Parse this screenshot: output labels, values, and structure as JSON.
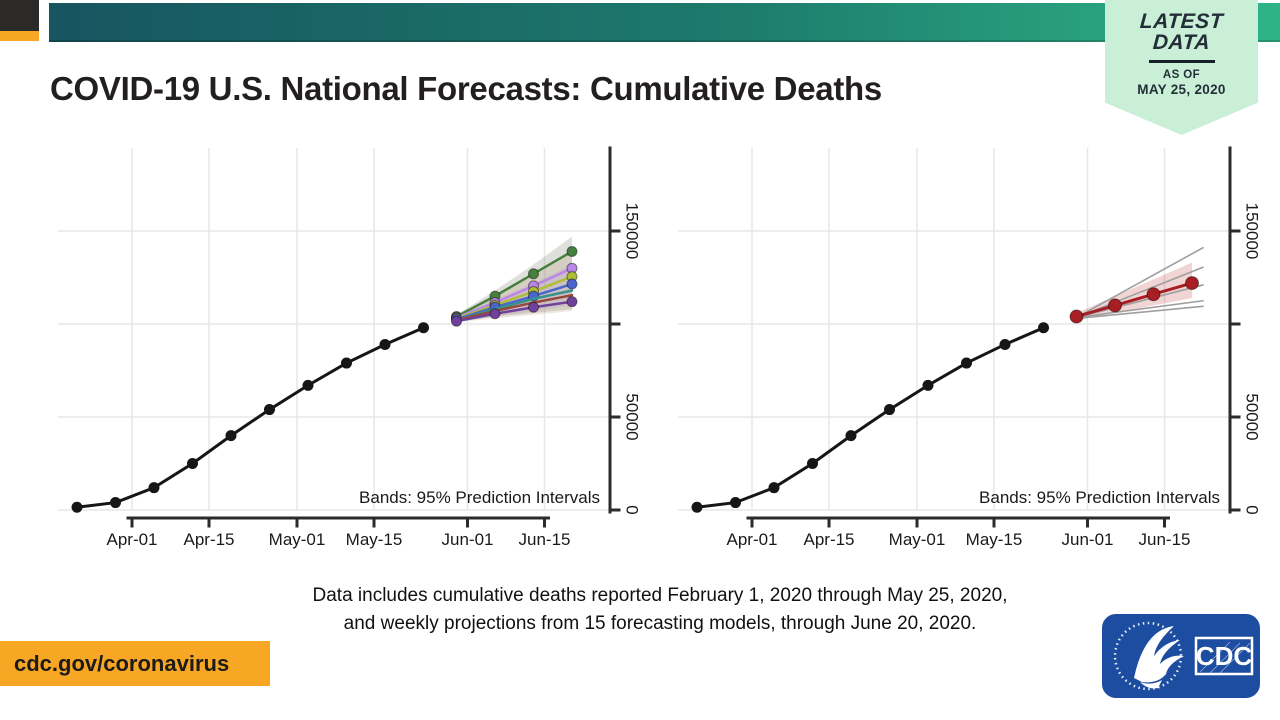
{
  "header": {
    "title": "COVID-19 U.S. National Forecasts: Cumulative Deaths",
    "badge": {
      "line1": "LATEST",
      "line2": "DATA",
      "as_of": "AS OF",
      "date": "MAY 25, 2020"
    },
    "colors": {
      "bar_gradient_left": "#175560",
      "bar_gradient_right": "#2eb487",
      "badge_bg": "#c9efd7",
      "corner_black": "#2b2a28",
      "corner_orange": "#f7a723"
    }
  },
  "caption": {
    "line1": "Data includes cumulative deaths reported February 1, 2020 through May 25, 2020,",
    "line2": "and weekly projections from 15 forecasting models, through June 20, 2020."
  },
  "footer": {
    "url": "cdc.gov/coronavirus",
    "logo_label": "CDC",
    "logo_color": "#1c4da1"
  },
  "chart_data": [
    {
      "type": "line",
      "panel": "individual-model-forecasts",
      "annotation": "Bands: 95% Prediction Intervals",
      "ylim": [
        0,
        195000
      ],
      "grid": true,
      "x_ticks": [
        {
          "label": "Apr-01",
          "day": 0
        },
        {
          "label": "Apr-15",
          "day": 14
        },
        {
          "label": "May-01",
          "day": 30
        },
        {
          "label": "May-15",
          "day": 44
        },
        {
          "label": "Jun-01",
          "day": 61
        },
        {
          "label": "Jun-15",
          "day": 75
        }
      ],
      "y_ticks": [
        {
          "label": "0",
          "value": 0
        },
        {
          "label": "50000",
          "value": 50000
        },
        {
          "label": "",
          "value": 100000
        },
        {
          "label": "150000",
          "value": 150000
        }
      ],
      "bands": [
        {
          "color": "rgba(140,140,125,0.28)",
          "days": [
            59,
            66,
            73,
            80
          ],
          "lower": [
            101000,
            104000,
            106000,
            108000
          ],
          "upper": [
            105000,
            118000,
            132000,
            147000
          ]
        },
        {
          "color": "rgba(180,160,120,0.25)",
          "days": [
            59,
            66,
            73,
            80
          ],
          "lower": [
            101000,
            103000,
            105000,
            107000
          ],
          "upper": [
            105000,
            115000,
            126000,
            138000
          ]
        },
        {
          "color": "rgba(175,140,205,0.22)",
          "days": [
            59,
            66,
            73,
            80
          ],
          "lower": [
            101000,
            104000,
            107000,
            110000
          ],
          "upper": [
            104000,
            113000,
            122000,
            132000
          ]
        }
      ],
      "series": [
        {
          "name": "reported-cumulative-deaths",
          "color": "#161616",
          "width": 3,
          "dots": true,
          "dot_r": 5.5,
          "days": [
            -10,
            -3,
            4,
            11,
            18,
            25,
            32,
            39,
            46,
            53
          ],
          "values": [
            1500,
            4000,
            12000,
            25000,
            40000,
            54000,
            67000,
            79000,
            89000,
            98000
          ]
        },
        {
          "name": "model-1",
          "color": "#477f3f",
          "width": 2.5,
          "dots": true,
          "dot_r": 5,
          "ring": true,
          "days": [
            59,
            66,
            73,
            80
          ],
          "values": [
            104000,
            115000,
            127000,
            139000
          ]
        },
        {
          "name": "model-2",
          "color": "#bb85e8",
          "width": 2.5,
          "dots": true,
          "dot_r": 5,
          "ring": true,
          "days": [
            59,
            66,
            73,
            80
          ],
          "values": [
            103500,
            111500,
            120500,
            130000
          ]
        },
        {
          "name": "model-3",
          "color": "#afbc38",
          "width": 2.5,
          "dots": true,
          "dot_r": 5,
          "ring": true,
          "days": [
            59,
            66,
            73,
            80
          ],
          "values": [
            103000,
            110000,
            117500,
            125500
          ]
        },
        {
          "name": "model-4",
          "color": "#4a66cc",
          "width": 2.5,
          "dots": true,
          "dot_r": 5,
          "ring": true,
          "days": [
            59,
            66,
            73,
            80
          ],
          "values": [
            102500,
            109000,
            115000,
            121500
          ]
        },
        {
          "name": "model-5",
          "color": "#37918d",
          "width": 2.5,
          "dots": false,
          "dot_r": 4,
          "days": [
            59,
            66,
            73,
            80
          ],
          "values": [
            102000,
            108000,
            113500,
            118000
          ]
        },
        {
          "name": "model-6",
          "color": "#95483b",
          "width": 2.5,
          "dots": false,
          "dot_r": 4,
          "days": [
            59,
            66,
            73,
            80
          ],
          "values": [
            102000,
            107000,
            111500,
            115500
          ]
        },
        {
          "name": "model-7",
          "color": "#70419b",
          "width": 2.5,
          "dots": true,
          "dot_r": 5,
          "ring": true,
          "days": [
            59,
            66,
            73,
            80
          ],
          "values": [
            101500,
            105500,
            109000,
            112000
          ]
        }
      ]
    },
    {
      "type": "line",
      "panel": "ensemble-forecast",
      "annotation": "Bands: 95% Prediction Intervals",
      "ylim": [
        0,
        195000
      ],
      "grid": true,
      "x_ticks": [
        {
          "label": "Apr-01",
          "day": 0
        },
        {
          "label": "Apr-15",
          "day": 14
        },
        {
          "label": "May-01",
          "day": 30
        },
        {
          "label": "May-15",
          "day": 44
        },
        {
          "label": "Jun-01",
          "day": 61
        },
        {
          "label": "Jun-15",
          "day": 75
        }
      ],
      "y_ticks": [
        {
          "label": "0",
          "value": 0
        },
        {
          "label": "50000",
          "value": 50000
        },
        {
          "label": "",
          "value": 100000
        },
        {
          "label": "150000",
          "value": 150000
        }
      ],
      "bands": [
        {
          "color": "rgba(190,60,60,0.22)",
          "days": [
            59,
            66,
            73,
            80
          ],
          "lower": [
            102000,
            106000,
            110000,
            114000
          ],
          "upper": [
            106000,
            115000,
            124000,
            133000
          ]
        }
      ],
      "series": [
        {
          "name": "reported-cumulative-deaths",
          "color": "#161616",
          "width": 3,
          "dots": true,
          "dot_r": 5.5,
          "days": [
            -10,
            -3,
            4,
            11,
            18,
            25,
            32,
            39,
            46,
            53
          ],
          "values": [
            1500,
            4000,
            12000,
            25000,
            40000,
            54000,
            67000,
            79000,
            89000,
            98000
          ]
        },
        {
          "name": "individual-model-1",
          "color": "#9f9f9f",
          "width": 1.6,
          "dots": false,
          "dot_r": 0,
          "days": [
            59,
            82
          ],
          "values": [
            103500,
            141000
          ]
        },
        {
          "name": "individual-model-2",
          "color": "#9f9f9f",
          "width": 1.6,
          "dots": false,
          "dot_r": 0,
          "days": [
            59,
            82
          ],
          "values": [
            103500,
            130500
          ]
        },
        {
          "name": "individual-model-3",
          "color": "#9f9f9f",
          "width": 1.6,
          "dots": false,
          "dot_r": 0,
          "days": [
            59,
            82
          ],
          "values": [
            103500,
            121000
          ]
        },
        {
          "name": "individual-model-4",
          "color": "#9f9f9f",
          "width": 1.6,
          "dots": false,
          "dot_r": 0,
          "days": [
            59,
            82
          ],
          "values": [
            103500,
            112500
          ]
        },
        {
          "name": "individual-model-5",
          "color": "#9f9f9f",
          "width": 1.6,
          "dots": false,
          "dot_r": 0,
          "days": [
            59,
            82
          ],
          "values": [
            103000,
            109500
          ]
        },
        {
          "name": "ensemble-forecast",
          "color": "#a81e22",
          "width": 3,
          "dots": true,
          "dot_r": 6.5,
          "ring": true,
          "days": [
            59,
            66,
            73,
            80
          ],
          "values": [
            104000,
            110000,
            116000,
            122000
          ]
        }
      ]
    }
  ]
}
